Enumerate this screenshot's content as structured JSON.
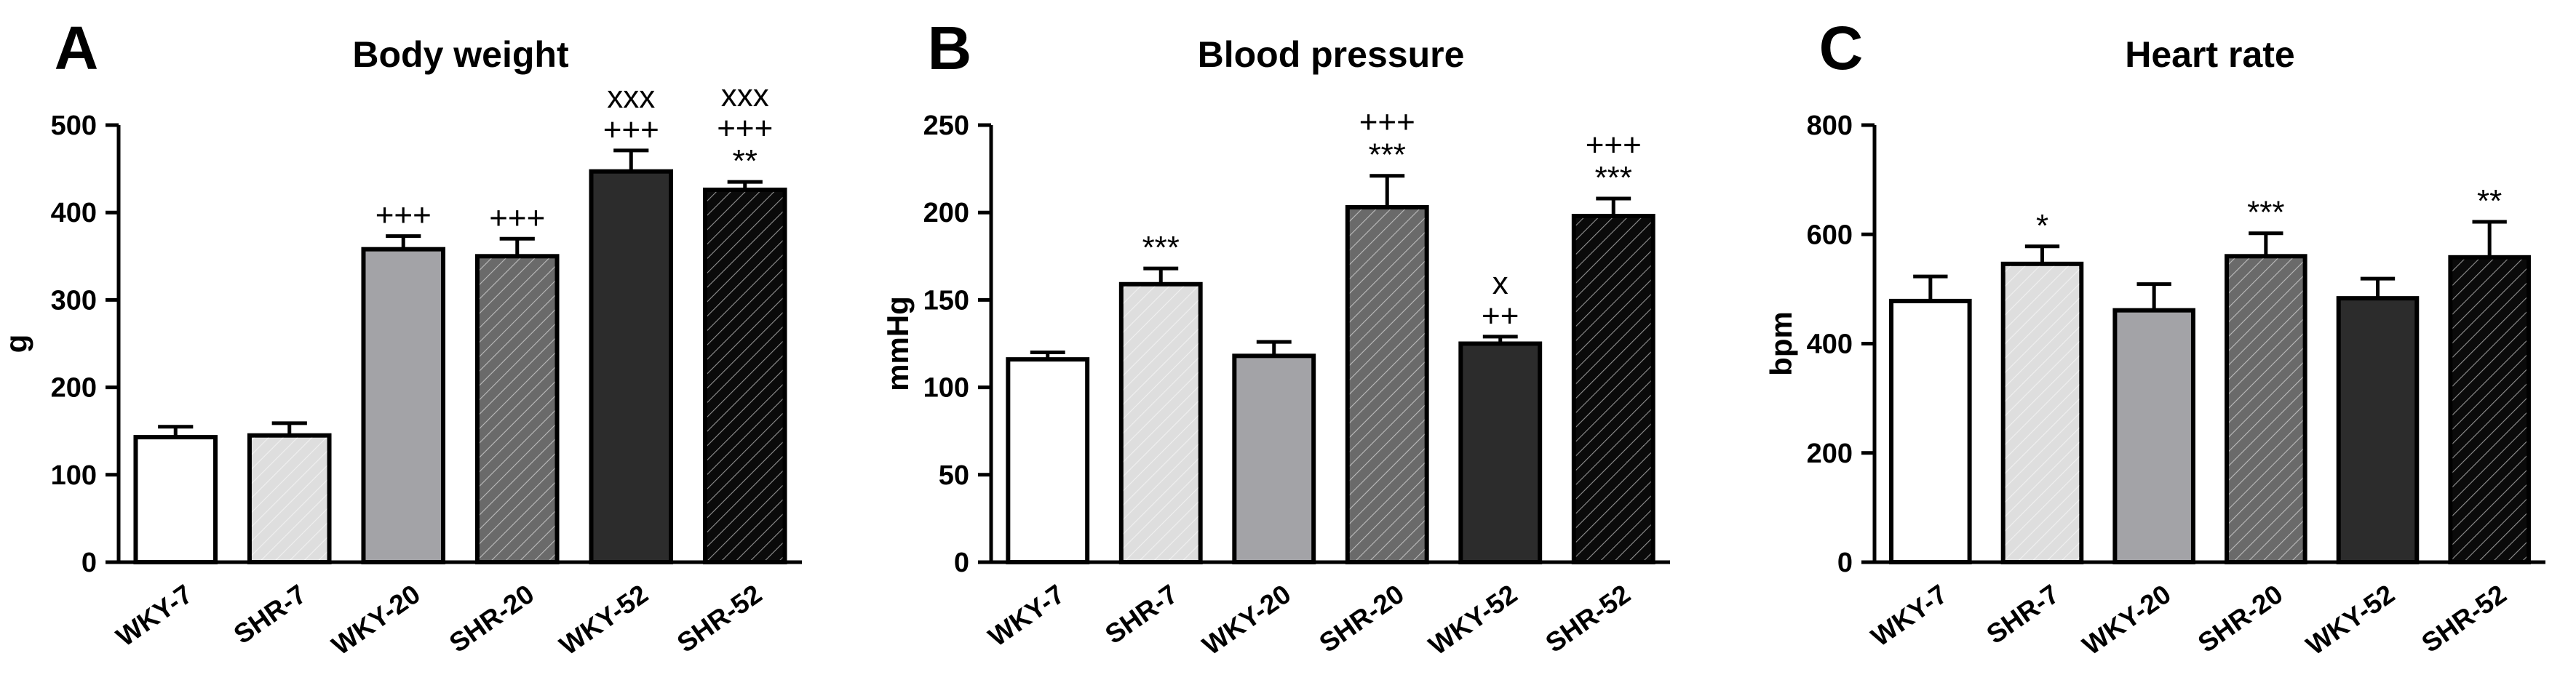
{
  "chart_data": [
    {
      "type": "bar",
      "panel": "A",
      "title": "Body weight",
      "xlabel": "",
      "ylabel": "g",
      "ylim": [
        0,
        500
      ],
      "yticks": [
        0,
        100,
        200,
        300,
        400,
        500
      ],
      "categories": [
        "WKY-7",
        "SHR-7",
        "WKY-20",
        "SHR-20",
        "WKY-52",
        "SHR-52"
      ],
      "values": [
        143,
        145,
        358,
        350,
        447,
        426
      ],
      "errors": [
        12,
        14,
        15,
        20,
        24,
        9
      ],
      "annotations": [
        [],
        [],
        [
          "+++"
        ],
        [
          "+++"
        ],
        [
          "xxx",
          "+++"
        ],
        [
          "xxx",
          "+++",
          "**"
        ]
      ]
    },
    {
      "type": "bar",
      "panel": "B",
      "title": "Blood pressure",
      "xlabel": "",
      "ylabel": "mmHg",
      "ylim": [
        0,
        250
      ],
      "yticks": [
        0,
        50,
        100,
        150,
        200,
        250
      ],
      "categories": [
        "WKY-7",
        "SHR-7",
        "WKY-20",
        "SHR-20",
        "WKY-52",
        "SHR-52"
      ],
      "values": [
        116,
        159,
        118,
        203,
        125,
        198
      ],
      "errors": [
        4,
        9,
        8,
        18,
        4,
        10
      ],
      "annotations": [
        [],
        [
          "***"
        ],
        [],
        [
          "+++",
          "***"
        ],
        [
          "x",
          "++"
        ],
        [
          "+++",
          "***"
        ]
      ]
    },
    {
      "type": "bar",
      "panel": "C",
      "title": "Heart rate",
      "xlabel": "",
      "ylabel": "bpm",
      "ylim": [
        0,
        800
      ],
      "yticks": [
        0,
        200,
        400,
        600,
        800
      ],
      "categories": [
        "WKY-7",
        "SHR-7",
        "WKY-20",
        "SHR-20",
        "WKY-52",
        "SHR-52"
      ],
      "values": [
        478,
        546,
        461,
        560,
        483,
        558
      ],
      "errors": [
        45,
        32,
        48,
        42,
        36,
        65
      ],
      "annotations": [
        [],
        [
          "*"
        ],
        [],
        [
          "***"
        ],
        [],
        [
          "**"
        ]
      ]
    }
  ],
  "styles": {
    "bar_colors": [
      "#ffffff",
      "#dedede",
      "#a3a3a7",
      "#6a6a6a",
      "#2c2c2c",
      "#0a0a0a"
    ],
    "hatched": [
      false,
      true,
      false,
      true,
      false,
      true
    ],
    "hatch_color": "#ffffff",
    "outline_color": "#000000"
  }
}
